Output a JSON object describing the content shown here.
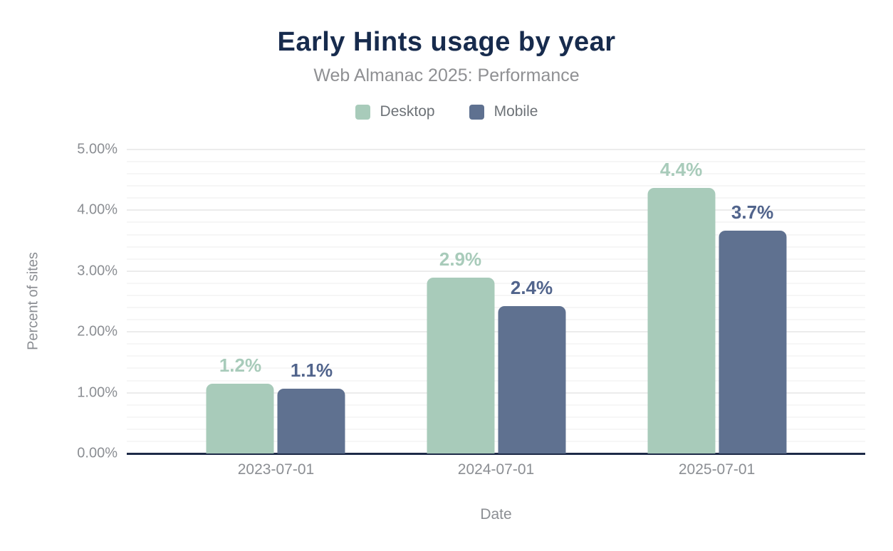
{
  "chart_data": {
    "type": "bar",
    "title": "Early Hints usage by year",
    "subtitle": "Web Almanac 2025: Performance",
    "xlabel": "Date",
    "ylabel": "Percent of sites",
    "categories": [
      "2023-07-01",
      "2024-07-01",
      "2025-07-01"
    ],
    "series": [
      {
        "name": "Desktop",
        "color": "#a8cbba",
        "label_color": "#a8cbba",
        "values": [
          1.15,
          2.89,
          4.37
        ],
        "labels": [
          "1.2%",
          "2.9%",
          "4.4%"
        ]
      },
      {
        "name": "Mobile",
        "color": "#5f7190",
        "label_color": "#51648c",
        "values": [
          1.07,
          2.42,
          3.66
        ],
        "labels": [
          "1.1%",
          "2.4%",
          "3.7%"
        ]
      }
    ],
    "y_axis": {
      "min": 0,
      "max": 5,
      "tick_labels": [
        "0.00%",
        "1.00%",
        "2.00%",
        "3.00%",
        "4.00%",
        "5.00%"
      ],
      "minor_step": 0.2
    },
    "legend_position": "top",
    "grid": true,
    "colors": {
      "title": "#172b4d",
      "subtitle": "#8f9093",
      "axis_text": "#8b8e93",
      "axis_line": "#1d2a47",
      "grid_major": "#ececec",
      "grid_minor": "#f6f6f6"
    }
  }
}
